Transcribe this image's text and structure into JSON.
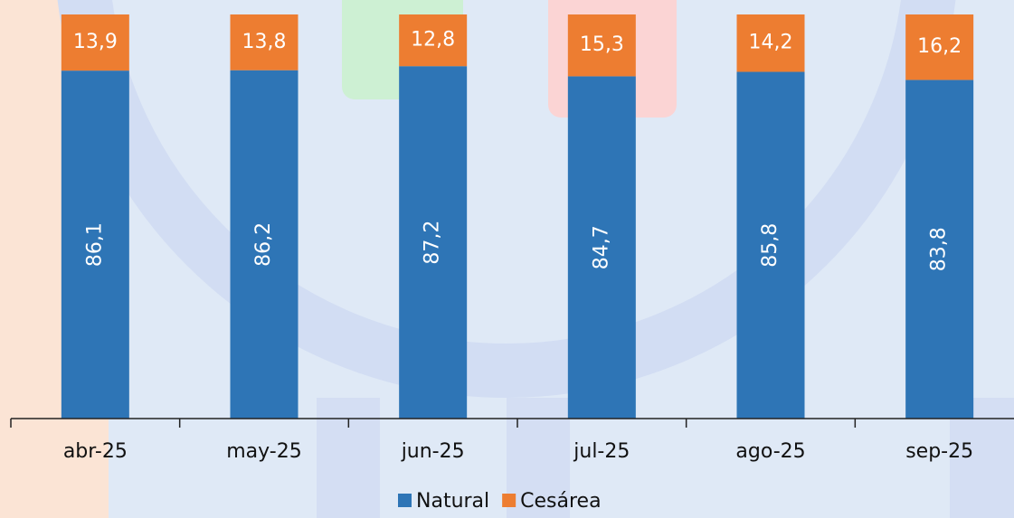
{
  "chart_data": {
    "type": "stacked_bar",
    "categories": [
      "abr-25",
      "may-25",
      "jun-25",
      "jul-25",
      "ago-25",
      "sep-25"
    ],
    "series": [
      {
        "name": "Natural",
        "color": "#2e75b6",
        "values": [
          86.1,
          86.2,
          87.2,
          84.7,
          85.8,
          83.8
        ],
        "value_labels": [
          "86,1",
          "86,2",
          "87,2",
          "84,7",
          "85,8",
          "83,8"
        ]
      },
      {
        "name": "Cesárea",
        "color": "#ed7d31",
        "values": [
          13.9,
          13.8,
          12.8,
          15.3,
          14.2,
          16.2
        ],
        "value_labels": [
          "13,9",
          "13,8",
          "12,8",
          "15,3",
          "14,2",
          "16,2"
        ]
      }
    ],
    "ylim": [
      0,
      100
    ],
    "legend": "bottom"
  }
}
